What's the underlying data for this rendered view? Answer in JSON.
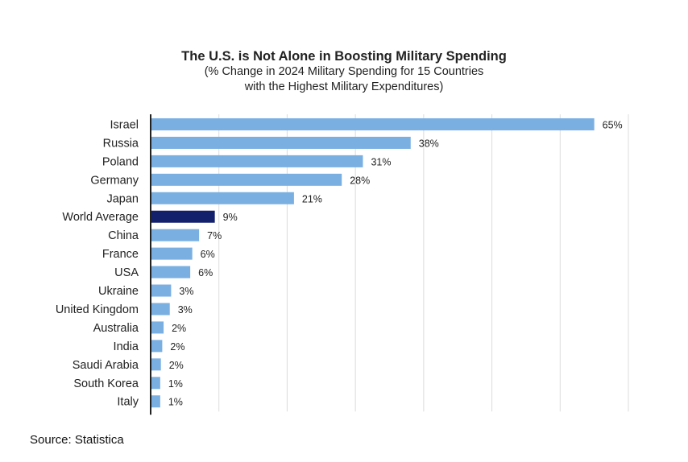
{
  "chart_data": {
    "type": "bar",
    "orientation": "horizontal",
    "title": "The U.S. is Not Alone in Boosting Military Spending",
    "subtitle_lines": [
      "(% Change in 2024 Military Spending for 15 Countries",
      "with the Highest Military Expenditures)"
    ],
    "xlabel": "",
    "ylabel": "",
    "xlim": [
      0,
      70
    ],
    "x_grid_step": 10,
    "grid": true,
    "categories": [
      "Israel",
      "Russia",
      "Poland",
      "Germany",
      "Japan",
      "World Average",
      "China",
      "France",
      "USA",
      "Ukraine",
      "United Kingdom",
      "Australia",
      "India",
      "Saudi Arabia",
      "South Korea",
      "Italy"
    ],
    "values": [
      65.0,
      38.1,
      31.1,
      28.0,
      21.0,
      9.4,
      7.1,
      6.1,
      5.8,
      3.0,
      2.8,
      1.9,
      1.7,
      1.5,
      1.4,
      1.4
    ],
    "data_labels": [
      "65%",
      "38%",
      "31%",
      "28%",
      "21%",
      "9%",
      "7%",
      "6%",
      "6%",
      "3%",
      "3%",
      "2%",
      "2%",
      "2%",
      "1%",
      "1%"
    ],
    "highlight_category": "World Average",
    "colors": {
      "default_bar": "#7aafe2",
      "highlight_bar": "#13206b",
      "grid": "#dcdcdc",
      "axis": "#222222"
    },
    "legend": "none",
    "source": "Source: Statistica"
  }
}
